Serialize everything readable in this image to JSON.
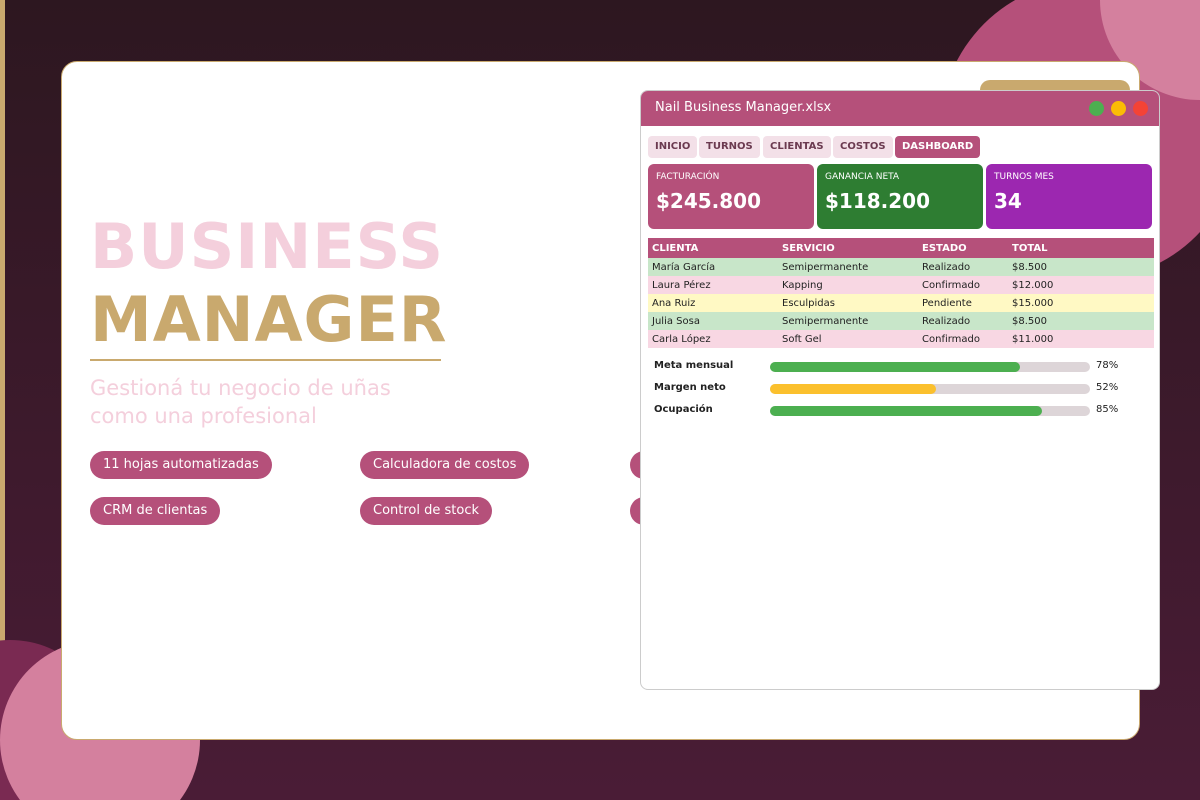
{
  "hero": {
    "title_line1": "BUSINESS",
    "title_line2": "MANAGER",
    "subtitle_line1": "Gestioná tu negocio de uñas",
    "subtitle_line2": "como una profesional",
    "features": [
      "11 hojas automatizadas",
      "Calculadora de costos",
      "CRM de clientas",
      "Control de stock"
    ]
  },
  "window": {
    "title": "Nail Business Manager.xlsx",
    "tabs": [
      "INICIO",
      "TURNOS",
      "CLIENTAS",
      "COSTOS",
      "DASHBOARD"
    ],
    "active_tab": 4,
    "kpis": [
      {
        "label": "FACTURACIÓN",
        "value": "$245.800",
        "color": "#b5507a"
      },
      {
        "label": "GANANCIA NETA",
        "value": "$118.200",
        "color": "#2e7d32"
      },
      {
        "label": "TURNOS MES",
        "value": "34",
        "color": "#9c27b0"
      }
    ],
    "table": {
      "header": [
        "CLIENTA",
        "SERVICIO",
        "ESTADO",
        "TOTAL"
      ],
      "rows": [
        {
          "cells": [
            "María García",
            "Semipermanente",
            "Realizado",
            "$8.500"
          ],
          "color": "#c8e6c9"
        },
        {
          "cells": [
            "Laura Pérez",
            "Kapping",
            "Confirmado",
            "$12.000"
          ],
          "color": "#f8d7e3"
        },
        {
          "cells": [
            "Ana Ruiz",
            "Esculpidas",
            "Pendiente",
            "$15.000"
          ],
          "color": "#fff9c4"
        },
        {
          "cells": [
            "Julia Sosa",
            "Semipermanente",
            "Realizado",
            "$8.500"
          ],
          "color": "#c8e6c9"
        },
        {
          "cells": [
            "Carla López",
            "Soft Gel",
            "Confirmado",
            "$11.000"
          ],
          "color": "#f8d7e3"
        }
      ]
    },
    "progress": {
      "labels": [
        "Meta mensual",
        "Margen neto",
        "Ocupación"
      ],
      "values": [
        78,
        52,
        85
      ],
      "value_labels": [
        "78%",
        "52%",
        "85%"
      ],
      "colors": [
        "#4caf50",
        "#fbc02d",
        "#4caf50"
      ]
    }
  }
}
